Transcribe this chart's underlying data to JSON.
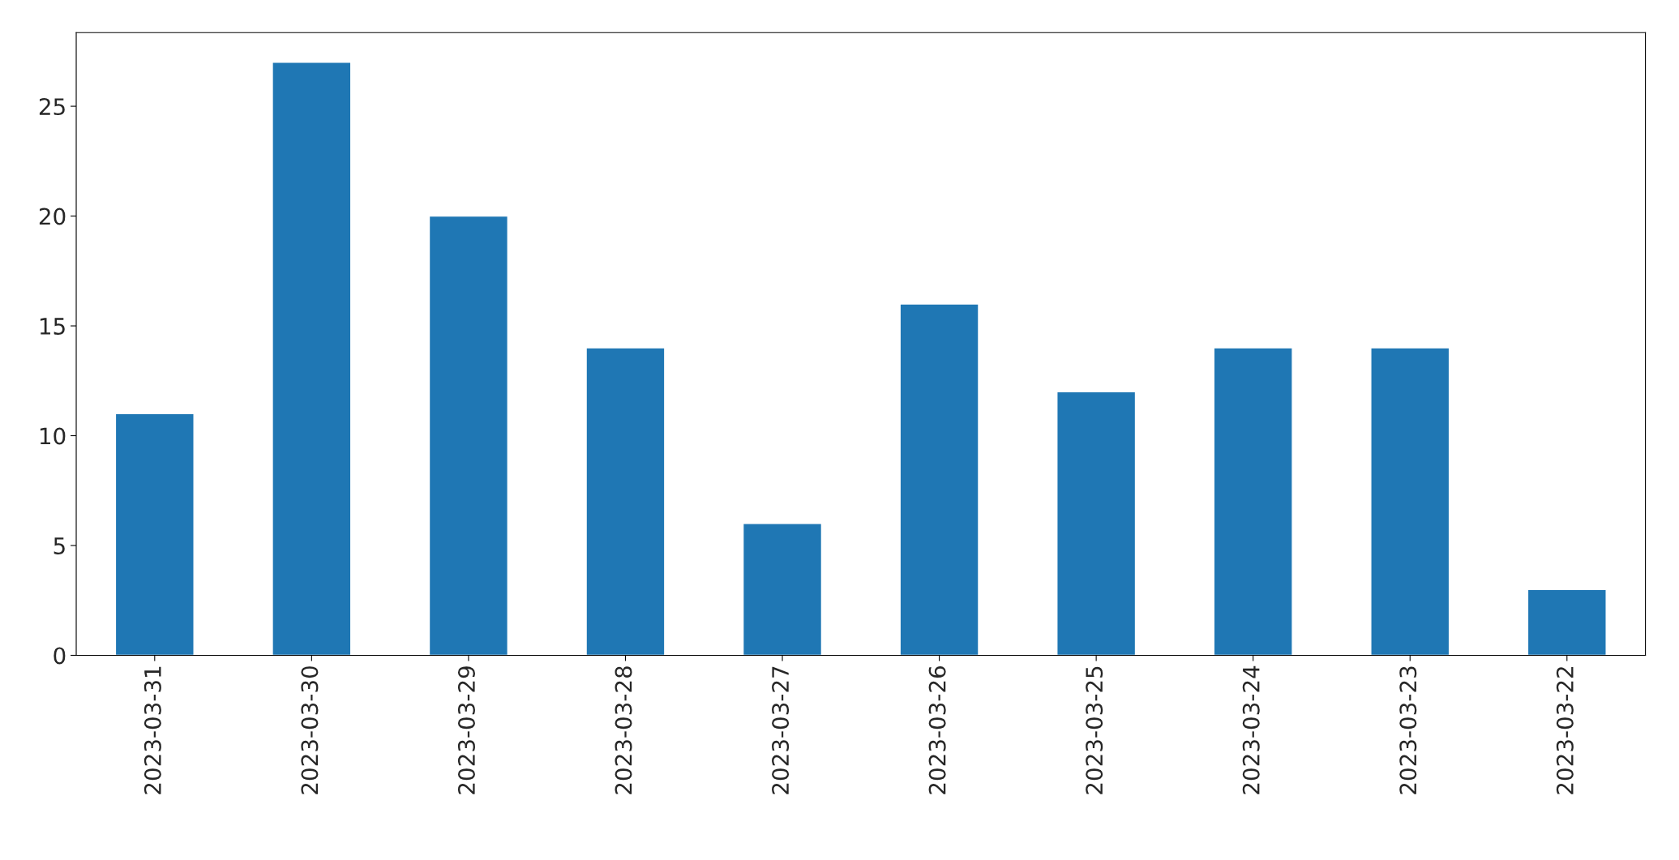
{
  "chart_data": {
    "type": "bar",
    "categories": [
      "2023-03-31",
      "2023-03-30",
      "2023-03-29",
      "2023-03-28",
      "2023-03-27",
      "2023-03-26",
      "2023-03-25",
      "2023-03-24",
      "2023-03-23",
      "2023-03-22"
    ],
    "values": [
      11,
      27,
      20,
      14,
      6,
      16,
      12,
      14,
      14,
      3
    ],
    "color": "#1f77b4",
    "ylim": [
      0,
      28.35
    ],
    "yticks": [
      0,
      5,
      10,
      15,
      20,
      25
    ],
    "grid": false
  }
}
